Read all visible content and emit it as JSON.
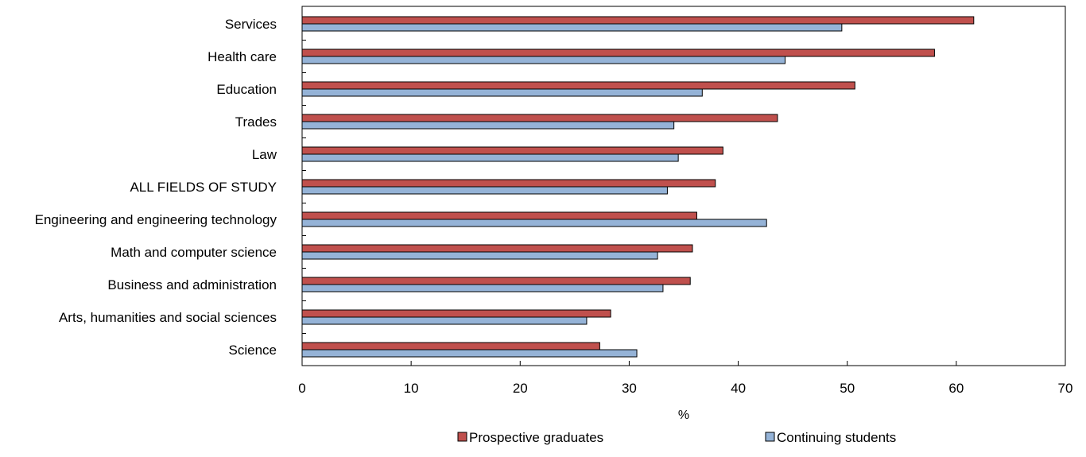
{
  "chart_data": {
    "type": "bar",
    "orientation": "horizontal",
    "categories": [
      "Services",
      "Health care",
      "Education",
      "Trades",
      "Law",
      "ALL FIELDS OF STUDY",
      "Engineering and engineering technology",
      "Math and computer science",
      "Business and administration",
      "Arts, humanities and social sciences",
      "Science"
    ],
    "series": [
      {
        "name": "Prospective graduates",
        "color": "#c0504d",
        "values": [
          61.6,
          58.0,
          50.7,
          43.6,
          38.6,
          37.9,
          36.2,
          35.8,
          35.6,
          28.3,
          27.3
        ]
      },
      {
        "name": "Continuing students",
        "color": "#95b3d7",
        "values": [
          49.5,
          44.3,
          36.7,
          34.1,
          34.5,
          33.5,
          42.6,
          32.6,
          33.1,
          26.1,
          30.7
        ]
      }
    ],
    "xlabel": "%",
    "xlim": [
      0,
      70
    ],
    "xticks": [
      "0",
      "10",
      "20",
      "30",
      "40",
      "50",
      "60",
      "70"
    ],
    "grid": false,
    "legend_position": "bottom"
  }
}
